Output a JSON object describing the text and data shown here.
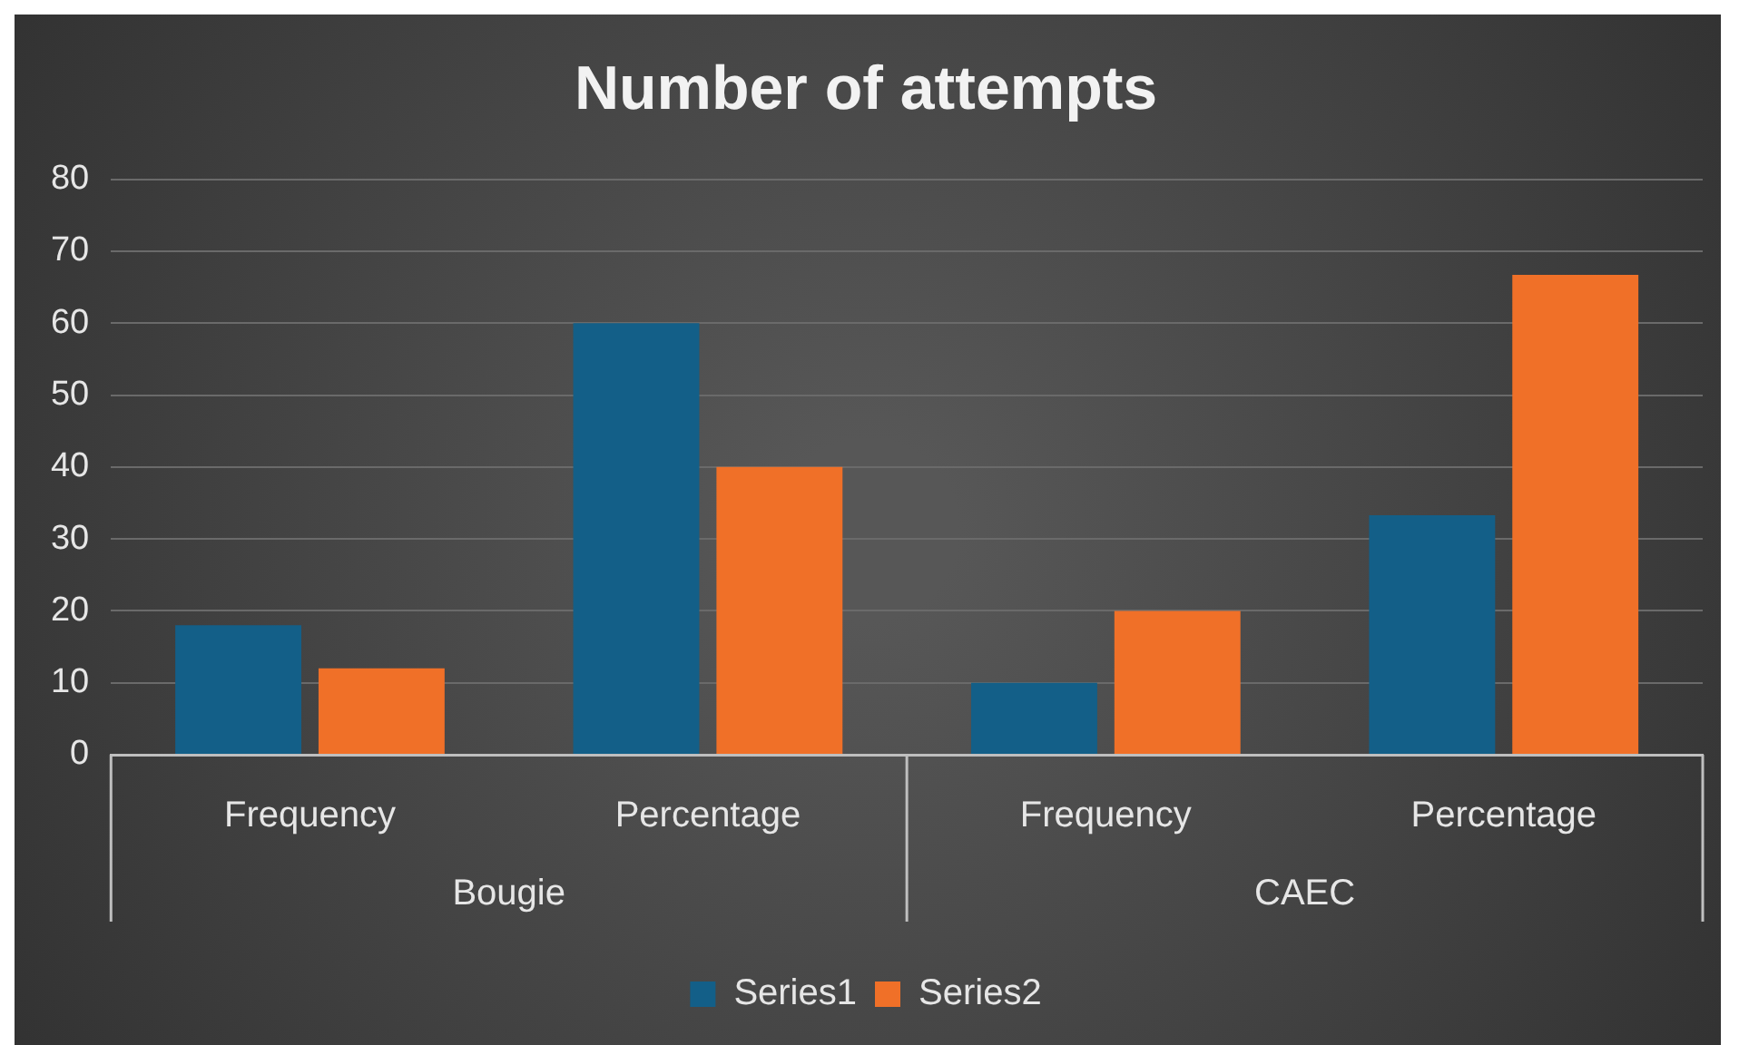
{
  "chart_data": {
    "type": "bar",
    "title": "Number of attempts",
    "categories": [
      "Frequency",
      "Percentage",
      "Frequency",
      "Percentage"
    ],
    "annotations": [
      "Bougie",
      "CAEC"
    ],
    "series": [
      {
        "name": "Series1",
        "color": "#135f88",
        "values": [
          18,
          60,
          10,
          33.3
        ]
      },
      {
        "name": "Series2",
        "color": "#f07028",
        "values": [
          12,
          40,
          20,
          66.7
        ]
      }
    ],
    "ylim": [
      0,
      80
    ],
    "yticks": [
      0,
      10,
      20,
      30,
      40,
      50,
      60,
      70,
      80
    ],
    "grid": "y",
    "legend": "bottom"
  }
}
